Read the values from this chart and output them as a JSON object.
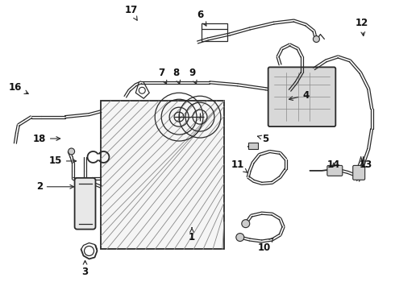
{
  "bg_color": "#ffffff",
  "line_color": "#2a2a2a",
  "label_color": "#111111",
  "figsize": [
    4.9,
    3.6
  ],
  "dpi": 100,
  "labels": [
    [
      "1",
      238,
      295,
      238,
      280
    ],
    [
      "2",
      48,
      232,
      95,
      232
    ],
    [
      "3",
      105,
      338,
      105,
      320
    ],
    [
      "4",
      380,
      118,
      355,
      124
    ],
    [
      "5",
      330,
      172,
      316,
      168
    ],
    [
      "6",
      248,
      18,
      258,
      35
    ],
    [
      "7",
      200,
      90,
      208,
      108
    ],
    [
      "8",
      218,
      90,
      224,
      108
    ],
    [
      "9",
      238,
      90,
      245,
      108
    ],
    [
      "10",
      328,
      308,
      340,
      295
    ],
    [
      "11",
      295,
      205,
      308,
      215
    ],
    [
      "12",
      450,
      28,
      452,
      48
    ],
    [
      "13",
      455,
      205,
      448,
      210
    ],
    [
      "14",
      415,
      205,
      410,
      210
    ],
    [
      "15",
      68,
      200,
      98,
      200
    ],
    [
      "16",
      18,
      108,
      38,
      118
    ],
    [
      "17",
      162,
      12,
      172,
      28
    ],
    [
      "18",
      48,
      172,
      78,
      172
    ]
  ]
}
